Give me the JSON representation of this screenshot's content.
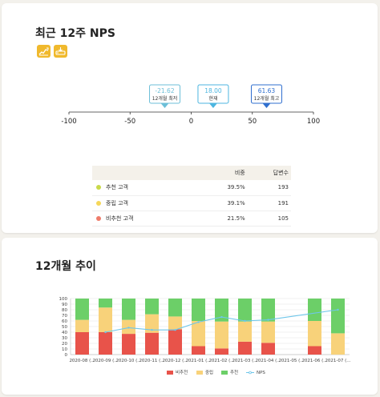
{
  "nps_card": {
    "title": "최근 12주 NPS",
    "icons": [
      {
        "name": "line-chart-icon",
        "color": "#f0b92d"
      },
      {
        "name": "data-export-icon",
        "color": "#f0b92d"
      }
    ],
    "scale_ticks": [
      "-100",
      "-50",
      "0",
      "50",
      "100"
    ],
    "scale_values": [
      -100,
      -50,
      0,
      50,
      100
    ],
    "markers": [
      {
        "value": -21.62,
        "value_label": "-21.62",
        "label": "12개월 최저",
        "color": "#6cbfd8"
      },
      {
        "value": 18.0,
        "value_label": "18.00",
        "label": "현재",
        "color": "#4db6e0"
      },
      {
        "value": 61.63,
        "value_label": "61.63",
        "label": "12개월 최고",
        "color": "#2f6fcf"
      }
    ],
    "table": {
      "headers": [
        "",
        "비중",
        "답변수"
      ],
      "rows": [
        {
          "segment": "추천 고객",
          "color": "#c9d94a",
          "share": "39.5%",
          "count": "193"
        },
        {
          "segment": "중립 고객",
          "color": "#f5d75a",
          "share": "39.1%",
          "count": "191"
        },
        {
          "segment": "비추천 고객",
          "color": "#ef7c6a",
          "share": "21.5%",
          "count": "105"
        }
      ]
    }
  },
  "trend_card": {
    "title": "12개월 추이"
  },
  "chart_data": {
    "type": "bar",
    "stacked": true,
    "categories": [
      "2020-08 (...",
      "2020-09 (...",
      "2020-10 (...",
      "2020-11 (...",
      "2020-12 (...",
      "2021-01 (...",
      "2021-02 (...",
      "2021-03 (...",
      "2021-04 (...",
      "2021-05 (...",
      "2021-06 (...",
      "2021-07 (..."
    ],
    "series": [
      {
        "name": "비추천",
        "color": "#e8534a",
        "values": [
          40,
          40,
          37,
          39,
          45,
          15,
          11,
          23,
          21,
          0,
          15,
          0
        ]
      },
      {
        "name": "중립",
        "color": "#f8d27a",
        "values": [
          22,
          44,
          25,
          33,
          23,
          45,
          48,
          36,
          38,
          0,
          45,
          38
        ]
      },
      {
        "name": "추천",
        "color": "#6ccf68",
        "values": [
          38,
          16,
          38,
          28,
          32,
          40,
          41,
          41,
          41,
          0,
          40,
          62
        ]
      }
    ],
    "line": {
      "name": "NPS",
      "color": "#6ec6ea",
      "values": [
        null,
        40,
        48,
        44,
        44,
        58,
        67,
        60,
        62,
        null,
        null,
        80
      ]
    },
    "ylim": [
      0,
      100
    ],
    "yticks": [
      "0",
      "10",
      "20",
      "30",
      "40",
      "50",
      "60",
      "70",
      "80",
      "90",
      "100"
    ],
    "grid": true,
    "legend_position": "bottom"
  }
}
